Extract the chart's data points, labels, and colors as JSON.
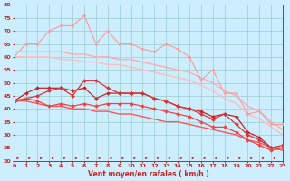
{
  "background_color": "#cceeff",
  "grid_color": "#99cccc",
  "xlabel": "Vent moyen/en rafales ( km/h )",
  "xlim": [
    0,
    23
  ],
  "ylim": [
    20,
    80
  ],
  "yticks": [
    20,
    25,
    30,
    35,
    40,
    45,
    50,
    55,
    60,
    65,
    70,
    75,
    80
  ],
  "xticks": [
    0,
    1,
    2,
    3,
    4,
    5,
    6,
    7,
    8,
    9,
    10,
    11,
    12,
    13,
    14,
    15,
    16,
    17,
    18,
    19,
    20,
    21,
    22,
    23
  ],
  "series": [
    {
      "x": [
        0,
        1,
        2,
        3,
        4,
        5,
        6,
        7,
        8,
        9,
        10,
        11,
        12,
        13,
        14,
        15,
        16,
        17,
        18,
        19,
        20,
        21,
        22,
        23
      ],
      "y": [
        60,
        65,
        65,
        70,
        72,
        72,
        76,
        65,
        70,
        65,
        65,
        63,
        62,
        65,
        63,
        60,
        51,
        55,
        46,
        46,
        38,
        39,
        34,
        34
      ],
      "color": "#ff9999",
      "linewidth": 0.8,
      "marker": "D",
      "markersize": 1.5
    },
    {
      "x": [
        0,
        1,
        2,
        3,
        4,
        5,
        6,
        7,
        8,
        9,
        10,
        11,
        12,
        13,
        14,
        15,
        16,
        17,
        18,
        19,
        20,
        21,
        22,
        23
      ],
      "y": [
        62,
        62,
        62,
        62,
        62,
        61,
        61,
        60,
        60,
        59,
        59,
        58,
        57,
        56,
        55,
        54,
        52,
        50,
        47,
        45,
        41,
        39,
        35,
        32
      ],
      "color": "#ffaaaa",
      "linewidth": 1.0,
      "marker": null
    },
    {
      "x": [
        0,
        1,
        2,
        3,
        4,
        5,
        6,
        7,
        8,
        9,
        10,
        11,
        12,
        13,
        14,
        15,
        16,
        17,
        18,
        19,
        20,
        21,
        22,
        23
      ],
      "y": [
        60,
        60,
        60,
        60,
        59,
        59,
        58,
        58,
        57,
        57,
        56,
        55,
        54,
        53,
        52,
        51,
        49,
        47,
        44,
        42,
        38,
        36,
        33,
        30
      ],
      "color": "#ffbbbb",
      "linewidth": 1.0,
      "marker": null
    },
    {
      "x": [
        0,
        1,
        2,
        3,
        4,
        5,
        6,
        7,
        8,
        9,
        10,
        11,
        12,
        13,
        14,
        15,
        16,
        17,
        18,
        19,
        20,
        21,
        22,
        23
      ],
      "y": [
        43,
        46,
        48,
        48,
        48,
        47,
        48,
        44,
        46,
        46,
        46,
        46,
        44,
        43,
        41,
        40,
        39,
        37,
        38,
        37,
        31,
        29,
        25,
        25
      ],
      "color": "#cc2222",
      "linewidth": 0.9,
      "marker": "D",
      "markersize": 2.0
    },
    {
      "x": [
        0,
        1,
        2,
        3,
        4,
        5,
        6,
        7,
        8,
        9,
        10,
        11,
        12,
        13,
        14,
        15,
        16,
        17,
        18,
        19,
        20,
        21,
        22,
        23
      ],
      "y": [
        43,
        44,
        45,
        47,
        48,
        45,
        51,
        51,
        48,
        46,
        46,
        46,
        44,
        43,
        41,
        40,
        38,
        36,
        38,
        34,
        30,
        28,
        25,
        26
      ],
      "color": "#dd3333",
      "linewidth": 0.9,
      "marker": "D",
      "markersize": 2.0
    },
    {
      "x": [
        0,
        1,
        2,
        3,
        4,
        5,
        6,
        7,
        8,
        9,
        10,
        11,
        12,
        13,
        14,
        15,
        16,
        17,
        18,
        19,
        20,
        21,
        22,
        23
      ],
      "y": [
        43,
        44,
        43,
        41,
        42,
        41,
        42,
        41,
        42,
        42,
        42,
        41,
        40,
        39,
        38,
        37,
        35,
        33,
        33,
        31,
        28,
        26,
        24,
        25
      ],
      "color": "#ee4444",
      "linewidth": 0.9,
      "marker": "D",
      "markersize": 2.0
    },
    {
      "x": [
        0,
        1,
        2,
        3,
        4,
        5,
        6,
        7,
        8,
        9,
        10,
        11,
        12,
        13,
        14,
        15,
        16,
        17,
        18,
        19,
        20,
        21,
        22,
        23
      ],
      "y": [
        43,
        43,
        42,
        41,
        41,
        40,
        40,
        39,
        39,
        38,
        38,
        37,
        36,
        35,
        35,
        34,
        33,
        32,
        31,
        30,
        28,
        27,
        25,
        24
      ],
      "color": "#ff5555",
      "linewidth": 1.0,
      "marker": null
    }
  ],
  "arrow_color": "#cc2222",
  "tick_color": "#cc2222",
  "label_color": "#cc2222"
}
